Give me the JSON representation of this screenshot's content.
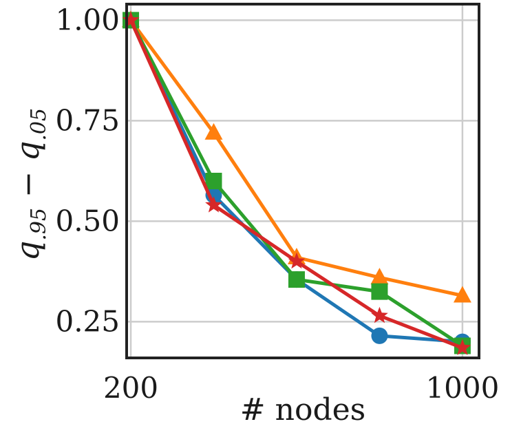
{
  "chart_data": {
    "type": "line",
    "xlabel": "# nodes",
    "ylabel": {
      "base1": "q",
      "sub1": ".95",
      "operator": " − ",
      "base2": "q",
      "sub2": ".05"
    },
    "xlim": [
      190,
      1040
    ],
    "ylim": [
      0.16,
      1.04
    ],
    "x_ticks": [
      {
        "value": 200,
        "label": "200"
      },
      {
        "value": 1000,
        "label": "1000"
      }
    ],
    "x_gridlines": [
      200,
      1000
    ],
    "y_ticks": [
      {
        "value": 1.0,
        "label": "1.00"
      },
      {
        "value": 0.75,
        "label": "0.75"
      },
      {
        "value": 0.5,
        "label": "0.50"
      },
      {
        "value": 0.25,
        "label": "0.25"
      }
    ],
    "grid": true,
    "x": [
      200,
      400,
      600,
      800,
      1000
    ],
    "series": [
      {
        "marker": "circle",
        "color": "#1f77b4",
        "values": [
          1.0,
          0.565,
          0.355,
          0.215,
          0.2
        ]
      },
      {
        "marker": "triangle",
        "color": "#ff7f0e",
        "values": [
          1.0,
          0.72,
          0.41,
          0.36,
          0.315
        ]
      },
      {
        "marker": "square",
        "color": "#2ca02c",
        "values": [
          1.0,
          0.6,
          0.355,
          0.325,
          0.19
        ]
      },
      {
        "marker": "star",
        "color": "#d62728",
        "values": [
          1.0,
          0.54,
          0.4,
          0.265,
          0.185
        ]
      }
    ]
  }
}
